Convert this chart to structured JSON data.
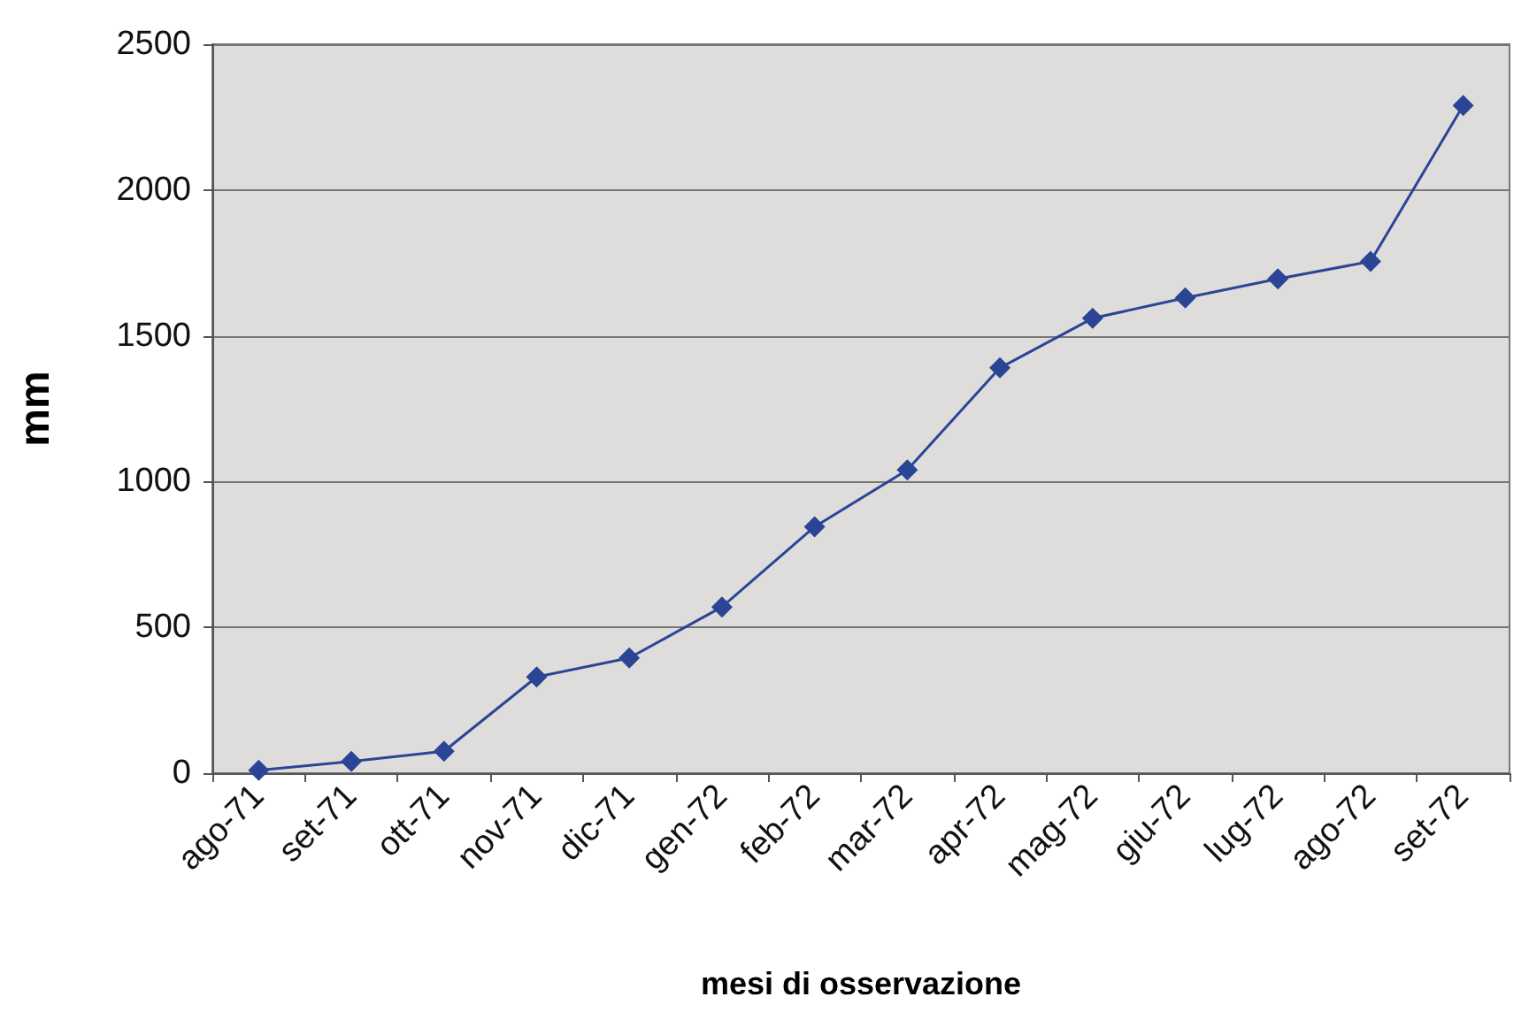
{
  "chart_data": {
    "type": "line",
    "xlabel": "mesi di osservazione",
    "ylabel": "mm",
    "categories": [
      "ago-71",
      "set-71",
      "ott-71",
      "nov-71",
      "dic-71",
      "gen-72",
      "feb-72",
      "mar-72",
      "apr-72",
      "mag-72",
      "giu-72",
      "lug-72",
      "ago-72",
      "set-72"
    ],
    "series": [
      {
        "color": "#2b4596",
        "values": [
          10,
          40,
          75,
          330,
          395,
          570,
          845,
          1040,
          1390,
          1560,
          1630,
          1695,
          1755,
          2290
        ]
      }
    ],
    "ylim": [
      0,
      2500
    ],
    "yticks": [
      0,
      500,
      1000,
      1500,
      2000,
      2500
    ],
    "grid": "y",
    "marker": "diamond",
    "line_style": "solid"
  }
}
